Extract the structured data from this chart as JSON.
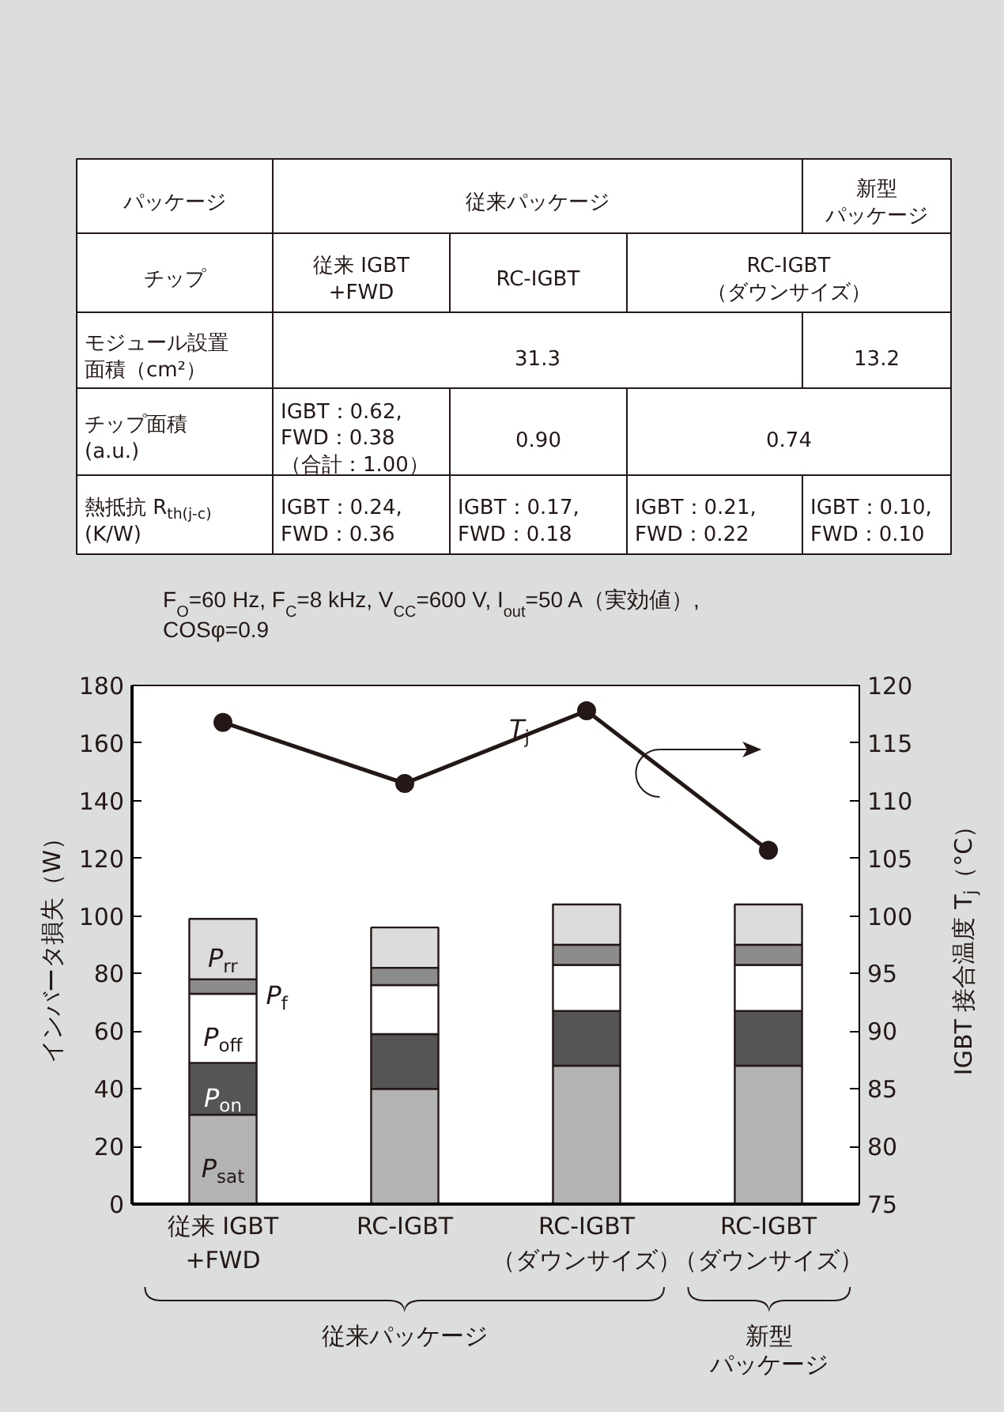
{
  "chart_data": [
    {
      "type": "other",
      "annotations": [
        "パッケージ",
        "従来パッケージ",
        "新型",
        "パッケージ",
        "チップ",
        "従来 IGBT\n+FWD",
        "RC-IGBT",
        "RC-IGBT\n（ダウンサイズ）",
        "モジュール設置",
        "面積（cm²）",
        "31.3",
        "13.2",
        "チップ面積\n(a.u.)",
        "IGBT：0.62,\nFWD：0.38\n（合計：1.00）",
        "0.90",
        "0.74",
        "熱抵抗 R$_{th(j-c)}$\n(K/W)",
        "IGBT：0.24,\nFWD：0.36",
        "IGBT：0.17,\nFWD：0.18",
        "IGBT：0.21,\nFWD：0.22",
        "IGBT：0.10,\nFWD：0.10"
      ]
    },
    {
      "type": "bar",
      "stacked": true,
      "subtitle": "F$_{O}$=60 Hz, F$_{C}$=8 kHz, V$_{CC}$=600 V, I$_{out}$=50 A（実効値）,\nCOSφ=0.9",
      "ylabel": "インバータ損失（W）",
      "y2label": "IGBT 接合温度 T$_{j}$（°C）",
      "categories": [
        "従来 IGBT\n+FWD",
        "RC-IGBT",
        "RC-IGBT\n（ダウンサイズ）",
        "RC-IGBT\n（ダウンサイズ）"
      ],
      "series": [
        {
          "name": "P$_{sat}$",
          "color": "#b3b3b3",
          "values": [
            31,
            40,
            48,
            48
          ]
        },
        {
          "name": "P$_{on}$",
          "color": "#555555",
          "values": [
            18,
            19,
            19,
            19
          ]
        },
        {
          "name": "P$_{off}$",
          "color": "#ffffff",
          "values": [
            24,
            17,
            16,
            16
          ]
        },
        {
          "name": "P$_{f}$",
          "color": "#8c8c8c",
          "values": [
            5,
            6,
            7,
            7
          ]
        },
        {
          "name": "P$_{rr}$",
          "color": "#dcdcdc",
          "values": [
            21,
            14,
            14,
            14
          ]
        },
        {
          "type": "line",
          "axis": "y2",
          "color": "#231815",
          "marker": "circle",
          "line_style": "solid",
          "values": [
            116.8,
            111.5,
            117.8,
            105.7
          ]
        }
      ],
      "ylim": [
        0,
        180
      ],
      "yticks": [
        0,
        20,
        40,
        60,
        80,
        100,
        120,
        140,
        160,
        180
      ],
      "y2lim": [
        75,
        120
      ],
      "y2ticks": [
        75,
        80,
        85,
        90,
        95,
        100,
        105,
        110,
        115,
        120
      ],
      "grid": false,
      "legend": false,
      "annotations": [
        "T$_{j}$",
        "従来パッケージ",
        "新型",
        "パッケージ"
      ]
    }
  ]
}
